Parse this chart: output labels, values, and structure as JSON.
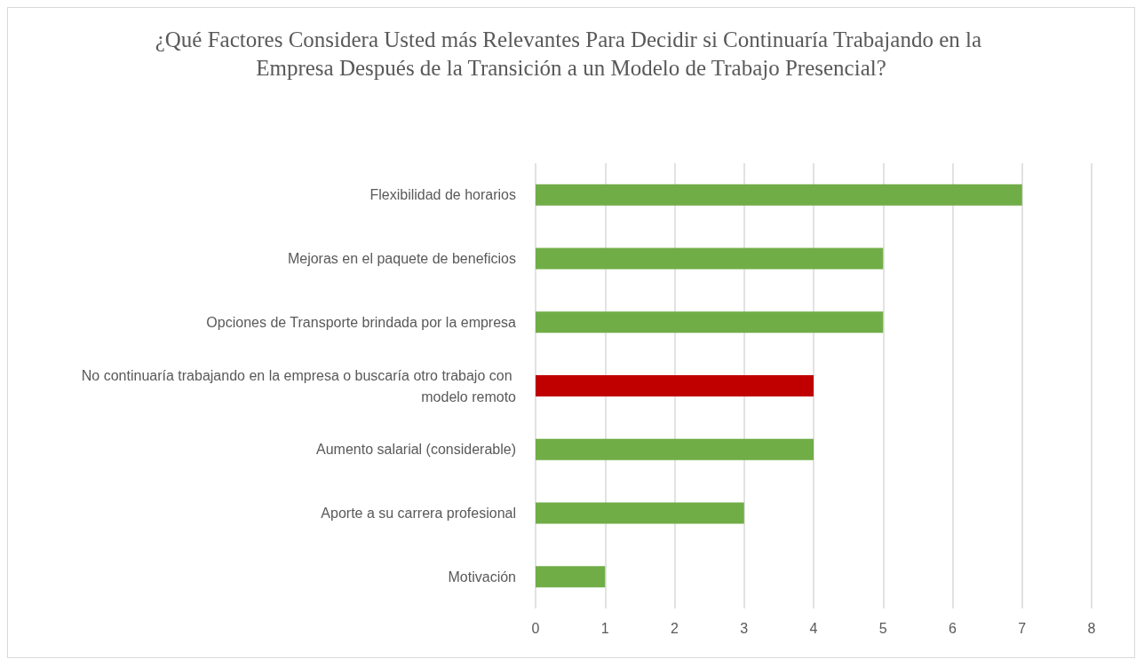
{
  "chart_data": {
    "type": "bar",
    "orientation": "horizontal",
    "title": "¿Qué Factores Considera Usted más Relevantes Para Decidir si Continuaría Trabajando en la Empresa Después de la Transición a un Modelo de Trabajo Presencial?",
    "categories": [
      "Flexibilidad de horarios",
      "Mejoras en el paquete de beneficios",
      "Opciones de Transporte brindada por la empresa",
      "No continuaría trabajando en la empresa o buscaría otro trabajo con modelo remoto",
      "Aumento salarial (considerable)",
      "Aporte a su carrera profesional",
      "Motivación"
    ],
    "values": [
      7,
      5,
      5,
      4,
      4,
      3,
      1
    ],
    "colors": [
      "#70ad47",
      "#70ad47",
      "#70ad47",
      "#c00000",
      "#70ad47",
      "#70ad47",
      "#70ad47"
    ],
    "xlim": [
      0,
      8
    ],
    "xticks": [
      0,
      1,
      2,
      3,
      4,
      5,
      6,
      7,
      8
    ],
    "grid": "x"
  }
}
